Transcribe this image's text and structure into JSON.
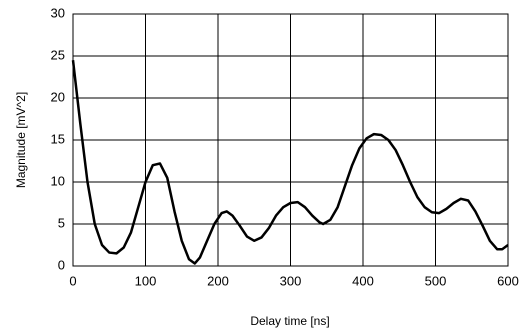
{
  "chart_data": {
    "type": "line",
    "x_label": "Delay time [ns]",
    "y_label": "Magnitude [mV^2]",
    "xlim": [
      0,
      600
    ],
    "xticks": [
      0,
      100,
      200,
      300,
      400,
      500,
      600
    ],
    "ylim": [
      0,
      30
    ],
    "yticks": [
      0,
      5,
      10,
      15,
      20,
      25,
      30
    ],
    "grid": true,
    "series": [
      {
        "color": "#000000",
        "x": [
          0,
          10,
          20,
          30,
          40,
          50,
          60,
          70,
          80,
          90,
          100,
          110,
          120,
          130,
          140,
          150,
          160,
          168,
          175,
          185,
          195,
          205,
          212,
          220,
          230,
          240,
          250,
          260,
          270,
          280,
          290,
          300,
          310,
          320,
          330,
          340,
          345,
          355,
          365,
          375,
          385,
          395,
          405,
          415,
          425,
          435,
          445,
          455,
          465,
          475,
          485,
          495,
          505,
          515,
          525,
          535,
          545,
          555,
          565,
          575,
          585,
          592,
          600
        ],
        "values": [
          24.5,
          17,
          10,
          5,
          2.5,
          1.6,
          1.5,
          2.2,
          4,
          7,
          10,
          12,
          12.2,
          10.5,
          6.5,
          3,
          0.8,
          0.3,
          1,
          3,
          5,
          6.3,
          6.5,
          6,
          4.8,
          3.5,
          3,
          3.4,
          4.5,
          6,
          7,
          7.5,
          7.6,
          7,
          6,
          5.2,
          5,
          5.5,
          7,
          9.5,
          12,
          14,
          15.2,
          15.7,
          15.6,
          15,
          13.8,
          12,
          10,
          8.2,
          7,
          6.4,
          6.3,
          6.8,
          7.5,
          8,
          7.8,
          6.5,
          4.8,
          3,
          2,
          2,
          2.5
        ]
      }
    ]
  }
}
